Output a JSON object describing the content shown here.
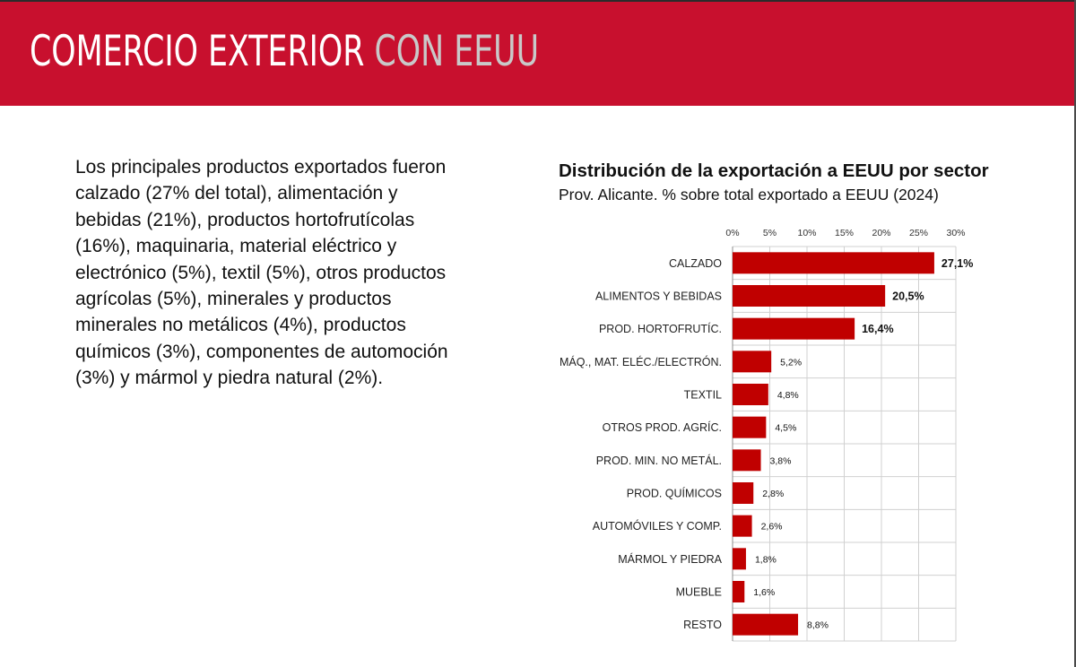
{
  "header": {
    "title_main": "COMERCIO EXTERIOR",
    "title_accent": "CON EEUU",
    "background_color": "#c8102e"
  },
  "body": {
    "paragraph": "Los principales productos exportados fueron calzado (27% del total), alimentación y bebidas (21%), productos hortofrutícolas (16%), maquinaria, material eléctrico y electrónico (5%), textil (5%), otros productos agrícolas (5%), minerales y productos minerales no metálicos (4%), productos químicos (3%), componentes de automoción (3%) y mármol y piedra natural (2%)."
  },
  "chart_data": {
    "type": "bar",
    "orientation": "horizontal",
    "title": "Distribución de la exportación a EEUU por sector",
    "subtitle": "Prov. Alicante. % sobre total exportado a EEUU (2024)",
    "categories": [
      "CALZADO",
      "ALIMENTOS Y BEBIDAS",
      "PROD. HORTOFRUTÍC.",
      "MÁQ., MAT. ELÉC./ELECTRÓN.",
      "TEXTIL",
      "OTROS PROD. AGRÍC.",
      "PROD. MIN. NO METÁL.",
      "PROD. QUÍMICOS",
      "AUTOMÓVILES Y COMP.",
      "MÁRMOL Y PIEDRA",
      "MUEBLE",
      "RESTO"
    ],
    "values": [
      27.1,
      20.5,
      16.4,
      5.2,
      4.8,
      4.5,
      3.8,
      2.8,
      2.6,
      1.8,
      1.6,
      8.8
    ],
    "data_labels": [
      "27,1%",
      "20,5%",
      "16,4%",
      "5,2%",
      "4,8%",
      "4,5%",
      "3,8%",
      "2,8%",
      "2,6%",
      "1,8%",
      "1,6%",
      "8,8%"
    ],
    "bold_labels": [
      true,
      true,
      true,
      false,
      false,
      false,
      false,
      false,
      false,
      false,
      false,
      false
    ],
    "xlim": [
      0,
      30
    ],
    "xticks": [
      0,
      5,
      10,
      15,
      20,
      25,
      30
    ],
    "xtick_labels": [
      "0%",
      "5%",
      "10%",
      "15%",
      "20%",
      "25%",
      "30%"
    ],
    "x_axis_position": "top",
    "grid": true,
    "bar_color": "#c00000"
  }
}
